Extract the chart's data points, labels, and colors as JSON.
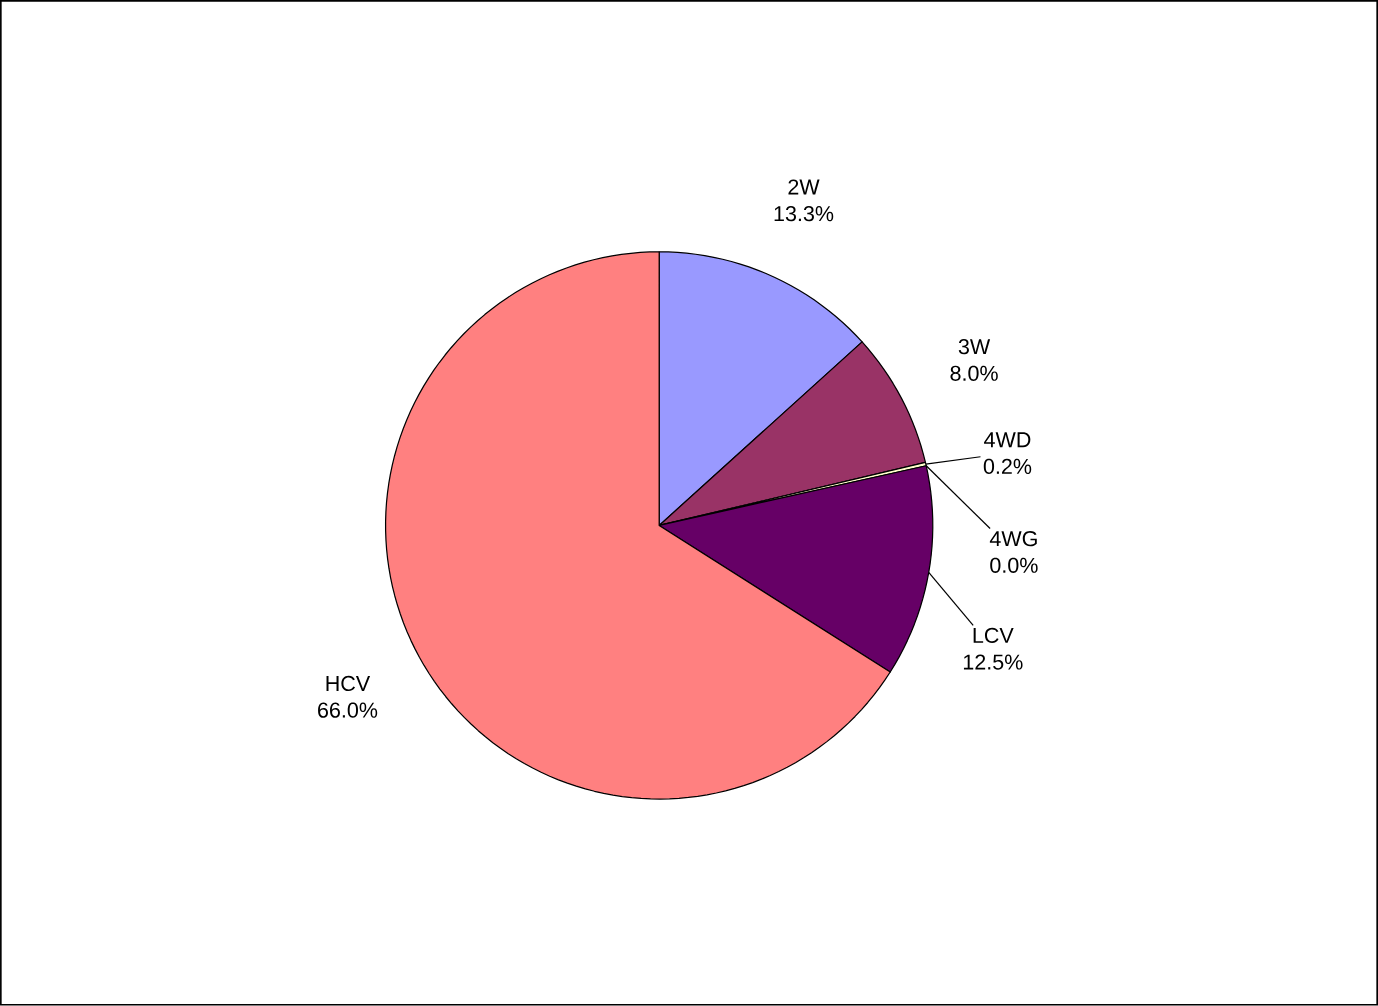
{
  "chart_data": {
    "type": "pie",
    "categories": [
      "2W",
      "3W",
      "4WD",
      "4WG",
      "LCV",
      "HCV"
    ],
    "values": [
      13.3,
      8.0,
      0.2,
      0.0,
      12.5,
      66.0
    ],
    "value_labels": [
      "13.3%",
      "8.0%",
      "0.2%",
      "0.0%",
      "12.5%",
      "66.0%"
    ],
    "colors": [
      "#9999ff",
      "#993366",
      "#ffffcc",
      "#ccffff",
      "#660066",
      "#ff8080"
    ]
  }
}
